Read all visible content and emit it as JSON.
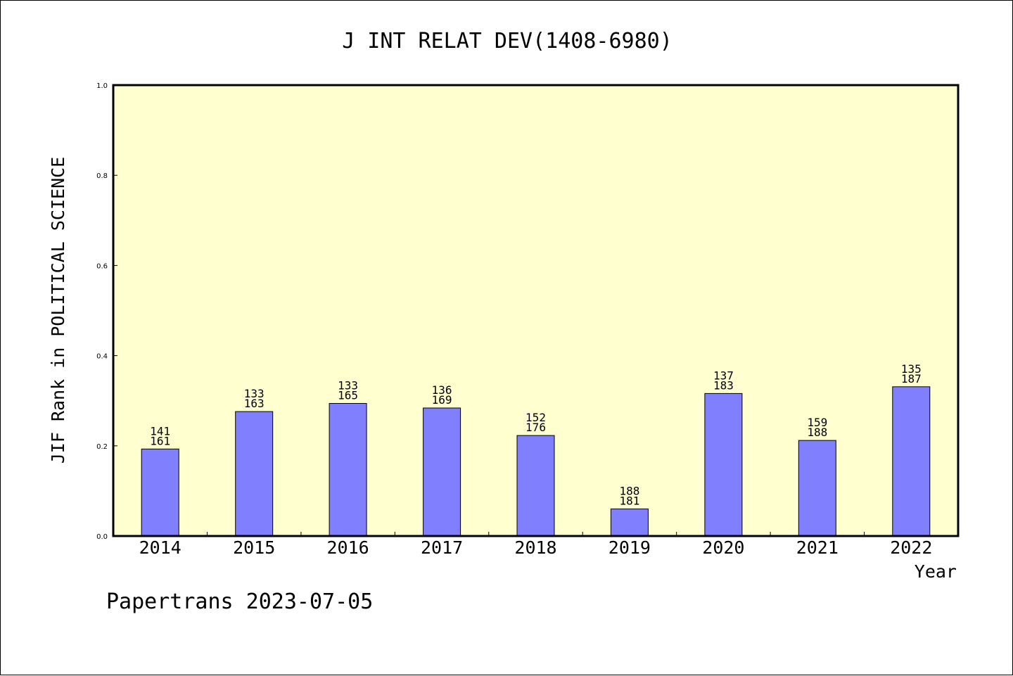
{
  "chart_data": {
    "type": "bar",
    "title": "J INT RELAT DEV(1408-6980)",
    "xlabel": "Year",
    "ylabel": "JIF Rank in POLITICAL SCIENCE",
    "categories": [
      "2014",
      "2015",
      "2016",
      "2017",
      "2018",
      "2019",
      "2020",
      "2021",
      "2022"
    ],
    "values": [
      0.193,
      0.276,
      0.294,
      0.284,
      0.223,
      0.06,
      0.316,
      0.212,
      0.331
    ],
    "bar_labels": [
      [
        "141",
        "161"
      ],
      [
        "133",
        "163"
      ],
      [
        "133",
        "165"
      ],
      [
        "136",
        "169"
      ],
      [
        "152",
        "176"
      ],
      [
        "188",
        "181"
      ],
      [
        "137",
        "183"
      ],
      [
        "159",
        "188"
      ],
      [
        "135",
        "187"
      ]
    ],
    "ylim": [
      0,
      1.0
    ],
    "yticks": [
      "0.0",
      "0.2",
      "0.4",
      "0.6",
      "0.8",
      "1.0"
    ],
    "grid": false,
    "colors": {
      "bar": "#8080ff",
      "plot_background": "#ffffd0",
      "axis": "#000000"
    }
  },
  "footer": "Papertrans 2023-07-05"
}
